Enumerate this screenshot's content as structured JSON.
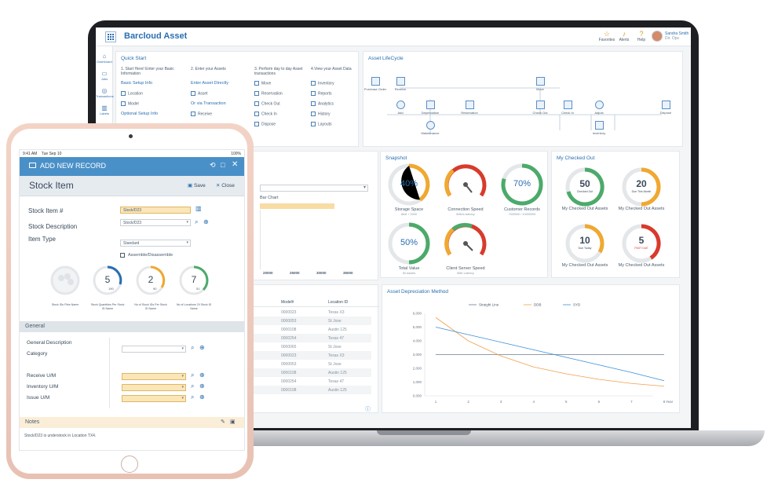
{
  "app": {
    "brand": "Barcloud Asset",
    "header": [
      {
        "label": "Favorites",
        "icon": "star-icon"
      },
      {
        "label": "Alerts",
        "icon": "bell-icon"
      },
      {
        "label": "Help",
        "icon": "help-icon"
      }
    ],
    "user": {
      "name": "Sandra Smith",
      "role": "Dir. Ops"
    },
    "nav": [
      "Dashboard",
      "Jobs",
      "Transactions",
      "Labels"
    ],
    "quick_start": {
      "title": "Quick Start",
      "steps": [
        "1. Start Here! Enter your Basic Information",
        "2. Enter your Assets",
        "3. Perform day to day Asset transactions",
        "4.View your Asset Data"
      ],
      "col1": {
        "link1": "Basic Setup Info",
        "items": [
          "Location",
          "Model"
        ],
        "link2": "Optional Setup Info"
      },
      "col2": {
        "link1": "Enter Asset Directly",
        "items": [
          "Asset"
        ],
        "link2": "Or via Transaction",
        "items2": [
          "Receive"
        ]
      },
      "col3": [
        "Move",
        "Reservation",
        "Check Out",
        "Check In",
        "Dispose"
      ],
      "col4": [
        "Inventory",
        "Reports",
        "Analytics",
        "History",
        "Layouts"
      ]
    },
    "lifecycle": {
      "title": "Asset LifeCycle",
      "nodes": [
        "Purchase Order",
        "Receive",
        "Add",
        "Depreciation",
        "Maintenance",
        "Reservation",
        "Move",
        "Check Out",
        "Check In",
        "Adjust",
        "Inventory",
        "Dispose"
      ]
    },
    "bar_chart": {
      "title": "Bar Chart",
      "ticks": [
        "20000",
        "25000",
        "30000",
        "35000"
      ]
    },
    "snapshot": {
      "title": "Snapshot",
      "gauges": [
        {
          "value": "40%",
          "label": "Storage Space",
          "sub": "8k/8 + 2000"
        },
        {
          "value": "",
          "label": "Connection Speed",
          "sub": "5Mb/s latency"
        },
        {
          "value": "70%",
          "label": "Customer Records",
          "sub": "7000000 / 10000000"
        },
        {
          "value": "50%",
          "label": "Total Value",
          "sub": "50 Assets"
        },
        {
          "value": "",
          "label": "Client Server Speed",
          "sub": "5Mb Latency"
        }
      ]
    },
    "checked_out": {
      "title": "My Checked Out",
      "gauges": [
        {
          "value": "50",
          "caption": "Checked Out",
          "label": "My Checked Out Assets"
        },
        {
          "value": "20",
          "caption": "Due This Month",
          "label": "My Checked Out Assets"
        },
        {
          "value": "10",
          "caption": "Due Today",
          "label": "My Checked Out Assets"
        },
        {
          "value": "5",
          "caption": "PAST DUE",
          "label": "My Checked Out Assets"
        }
      ]
    },
    "table": {
      "headers": [
        "Model#",
        "Location ID"
      ],
      "rows": [
        [
          "0000023",
          "Texas X3"
        ],
        [
          "0000053",
          "St Jose"
        ],
        [
          "0000108",
          "Austin 125"
        ],
        [
          "0000254",
          "Texas 47"
        ],
        [
          "0000065",
          "St Jose"
        ],
        [
          "0000023",
          "Texas X3"
        ],
        [
          "0000053",
          "St Jose"
        ],
        [
          "0000108",
          "Austin 125"
        ],
        [
          "0000254",
          "Texas 47"
        ],
        [
          "0000108",
          "Austin 125"
        ]
      ]
    },
    "depreciation": {
      "title": "Asset Depreciation Method"
    }
  },
  "chart_data": {
    "type": "line",
    "title": "Asset Depreciation Method",
    "xlabel": "Year",
    "x": [
      1,
      2,
      3,
      4,
      5,
      6,
      7,
      8
    ],
    "ylim": [
      0,
      6000
    ],
    "yticks": [
      "6,000",
      "5,000",
      "4,000",
      "3,000",
      "2,000",
      "1,000",
      "0,000"
    ],
    "series": [
      {
        "name": "Straight Line",
        "color": "#6b7c8f",
        "values": [
          3000,
          3000,
          3000,
          3000,
          3000,
          3000,
          3000,
          3000
        ]
      },
      {
        "name": "DDB",
        "color": "#f0a04b",
        "values": [
          5700,
          4000,
          2900,
          2100,
          1600,
          1200,
          900,
          700
        ]
      },
      {
        "name": "SYD",
        "color": "#3a8fd6",
        "values": [
          5000,
          4450,
          3900,
          3350,
          2800,
          2250,
          1700,
          1100
        ]
      }
    ]
  },
  "tablet": {
    "status": {
      "time": "9:41 AM",
      "date": "Tue Sep 10",
      "battery": "100%"
    },
    "title": "ADD NEW RECORD",
    "record_type": "Stock Item",
    "save": "Save",
    "close": "Close",
    "fields": {
      "stock_item_label": "Stock Item #",
      "stock_item_value": "Stock/D23",
      "stock_desc_label": "Stock Description",
      "stock_desc_value": "Stock/D23",
      "item_type_label": "Item Type",
      "item_type_value": "Standard",
      "assemble_label": "Assemble/Disassemble"
    },
    "circles": [
      {
        "value": "",
        "label": "Stock IDs Files Name"
      },
      {
        "value": "5",
        "total": "190",
        "label": "Stock Quantities Per Stock ID Name"
      },
      {
        "value": "2",
        "total": "90",
        "label": "No of Stock IDs Per Stock ID Name"
      },
      {
        "value": "7",
        "total": "51",
        "label": "No of Locations Of Stock ID Name"
      }
    ],
    "general": {
      "title": "General",
      "description_label": "General Description",
      "category_label": "Category",
      "receive_label": "Receive U/M",
      "inventory_label": "Inventory U/M",
      "issue_label": "Issue U/M"
    },
    "notes": {
      "title": "Notes",
      "text": "Stock/D23 is understock in Location TX4."
    }
  }
}
